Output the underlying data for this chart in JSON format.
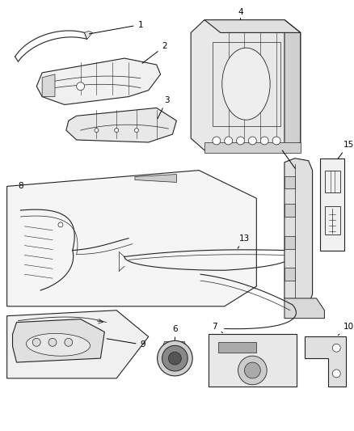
{
  "background_color": "#ffffff",
  "line_color": "#000000",
  "fig_width": 4.38,
  "fig_height": 5.33,
  "dpi": 100,
  "label_fontsize": 7.5
}
